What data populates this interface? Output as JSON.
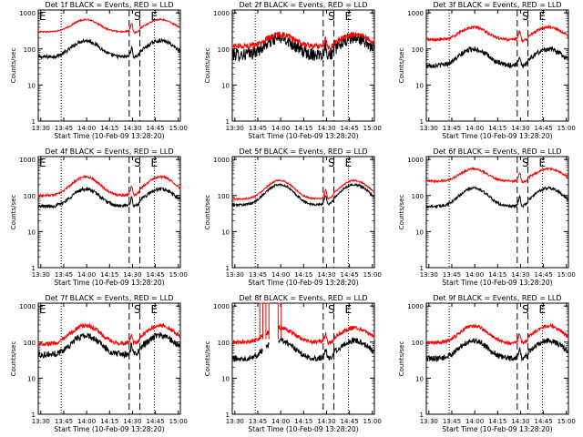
{
  "colors": {
    "events": "#000000",
    "lld": "#ff0000",
    "axes": "#000000",
    "background": "#ffffff"
  },
  "chart_data": [
    {
      "type": "line",
      "title": "Det 1f BLACK = Events, RED = LLD",
      "xlabel": "Start Time (10-Feb-09 13:28:20)",
      "ylabel": "Counts/sec",
      "y_scale": "log",
      "y_ticks": [
        "1",
        "10",
        "100",
        "1000"
      ],
      "x_ticks": [
        "13:30",
        "13:45",
        "14:00",
        "14:15",
        "14:30",
        "14:45",
        "15:00"
      ],
      "xlim_minutes": [
        0,
        93
      ],
      "ylim": [
        1,
        1200
      ],
      "markers": [
        {
          "label": "E",
          "x_minutes": 0
        },
        {
          "label": "S",
          "x_minutes": 62
        },
        {
          "label": "E",
          "x_minutes": 73
        }
      ],
      "dotted_lines_minutes": [
        15,
        76
      ],
      "dashed_lines_minutes": [
        59.5,
        66.5
      ],
      "series": [
        {
          "name": "Events",
          "color": "#000000",
          "base": 60,
          "peak": 170,
          "noise": 0.05
        },
        {
          "name": "LLD",
          "color": "#ff0000",
          "base": 300,
          "peak": 650,
          "noise": 0.02
        }
      ]
    },
    {
      "type": "line",
      "title": "Det 2f BLACK = Events, RED = LLD",
      "xlabel": "Start Time (10-Feb-09 13:28:20)",
      "ylabel": "Counts/sec",
      "y_scale": "log",
      "y_ticks": [
        "1",
        "10",
        "100",
        "1000"
      ],
      "x_ticks": [
        "13:30",
        "13:45",
        "14:00",
        "14:15",
        "14:30",
        "14:45",
        "15:00"
      ],
      "xlim_minutes": [
        0,
        93
      ],
      "ylim": [
        1,
        1200
      ],
      "markers": [
        {
          "label": "S",
          "x_minutes": 62
        },
        {
          "label": "E",
          "x_minutes": 73
        }
      ],
      "dotted_lines_minutes": [
        15,
        76
      ],
      "dashed_lines_minutes": [
        59.5,
        66.5
      ],
      "series": [
        {
          "name": "Events",
          "color": "#000000",
          "base": 70,
          "peak": 200,
          "noise": 0.18
        },
        {
          "name": "LLD",
          "color": "#ff0000",
          "base": 120,
          "peak": 250,
          "noise": 0.08
        }
      ]
    },
    {
      "type": "line",
      "title": "Det 3f BLACK = Events, RED = LLD",
      "xlabel": "Start Time (10-Feb-09 13:28:20)",
      "ylabel": "Counts/sec",
      "y_scale": "log",
      "y_ticks": [
        "1",
        "10",
        "100",
        "1000"
      ],
      "x_ticks": [
        "13:30",
        "13:45",
        "14:00",
        "14:15",
        "14:30",
        "14:45",
        "15:00"
      ],
      "xlim_minutes": [
        0,
        93
      ],
      "ylim": [
        1,
        1200
      ],
      "markers": [
        {
          "label": "S",
          "x_minutes": 62
        },
        {
          "label": "E",
          "x_minutes": 73
        }
      ],
      "dotted_lines_minutes": [
        15,
        76
      ],
      "dashed_lines_minutes": [
        59.5,
        66.5
      ],
      "series": [
        {
          "name": "Events",
          "color": "#000000",
          "base": 35,
          "peak": 100,
          "noise": 0.07
        },
        {
          "name": "LLD",
          "color": "#ff0000",
          "base": 180,
          "peak": 400,
          "noise": 0.04
        }
      ]
    },
    {
      "type": "line",
      "title": "Det 4f BLACK = Events, RED = LLD",
      "xlabel": "Start Time (10-Feb-09 13:28:20)",
      "ylabel": "Counts/sec",
      "y_scale": "log",
      "y_ticks": [
        "1",
        "10",
        "100",
        "1000"
      ],
      "x_ticks": [
        "13:30",
        "13:45",
        "14:00",
        "14:15",
        "14:30",
        "14:45",
        "15:00"
      ],
      "xlim_minutes": [
        0,
        93
      ],
      "ylim": [
        1,
        1200
      ],
      "markers": [
        {
          "label": "E",
          "x_minutes": 0
        },
        {
          "label": "S",
          "x_minutes": 62
        },
        {
          "label": "E",
          "x_minutes": 73
        }
      ],
      "dotted_lines_minutes": [
        15,
        76
      ],
      "dashed_lines_minutes": [
        59.5,
        66.5
      ],
      "series": [
        {
          "name": "Events",
          "color": "#000000",
          "base": 50,
          "peak": 150,
          "noise": 0.05
        },
        {
          "name": "LLD",
          "color": "#ff0000",
          "base": 100,
          "peak": 330,
          "noise": 0.03
        }
      ]
    },
    {
      "type": "line",
      "title": "Det 5f BLACK = Events, RED = LLD",
      "xlabel": "Start Time (10-Feb-09 13:28:20)",
      "ylabel": "Counts/sec",
      "y_scale": "log",
      "y_ticks": [
        "1",
        "10",
        "100",
        "1000"
      ],
      "x_ticks": [
        "13:30",
        "13:45",
        "14:00",
        "14:15",
        "14:30",
        "14:45",
        "15:00"
      ],
      "xlim_minutes": [
        0,
        93
      ],
      "ylim": [
        1,
        1200
      ],
      "markers": [
        {
          "label": "S",
          "x_minutes": 62
        },
        {
          "label": "E",
          "x_minutes": 73
        }
      ],
      "dotted_lines_minutes": [
        15,
        76
      ],
      "dashed_lines_minutes": [
        59.5,
        66.5
      ],
      "series": [
        {
          "name": "Events",
          "color": "#000000",
          "base": 55,
          "peak": 200,
          "noise": 0.03
        },
        {
          "name": "LLD",
          "color": "#ff0000",
          "base": 80,
          "peak": 260,
          "noise": 0.02
        }
      ]
    },
    {
      "type": "line",
      "title": "Det 6f BLACK = Events, RED = LLD",
      "xlabel": "Start Time (10-Feb-09 13:28:20)",
      "ylabel": "Counts/sec",
      "y_scale": "log",
      "y_ticks": [
        "1",
        "10",
        "100",
        "1000"
      ],
      "x_ticks": [
        "13:30",
        "13:45",
        "14:00",
        "14:15",
        "14:30",
        "14:45",
        "15:00"
      ],
      "xlim_minutes": [
        0,
        93
      ],
      "ylim": [
        1,
        1200
      ],
      "markers": [
        {
          "label": "S",
          "x_minutes": 62
        },
        {
          "label": "E",
          "x_minutes": 73
        }
      ],
      "dotted_lines_minutes": [
        15,
        76
      ],
      "dashed_lines_minutes": [
        59.5,
        66.5
      ],
      "series": [
        {
          "name": "Events",
          "color": "#000000",
          "base": 50,
          "peak": 160,
          "noise": 0.04
        },
        {
          "name": "LLD",
          "color": "#ff0000",
          "base": 250,
          "peak": 550,
          "noise": 0.03
        }
      ]
    },
    {
      "type": "line",
      "title": "Det 7f BLACK = Events, RED = LLD",
      "xlabel": "Start Time (10-Feb-09 13:28:20)",
      "ylabel": "Counts/sec",
      "y_scale": "log",
      "y_ticks": [
        "1",
        "10",
        "100",
        "1000"
      ],
      "x_ticks": [
        "13:30",
        "13:45",
        "14:00",
        "14:15",
        "14:30",
        "14:45",
        "15:00"
      ],
      "xlim_minutes": [
        0,
        93
      ],
      "ylim": [
        1,
        1200
      ],
      "markers": [
        {
          "label": "E",
          "x_minutes": 0
        },
        {
          "label": "S",
          "x_minutes": 62
        },
        {
          "label": "E",
          "x_minutes": 73
        }
      ],
      "dotted_lines_minutes": [
        15,
        76
      ],
      "dashed_lines_minutes": [
        59.5,
        66.5
      ],
      "series": [
        {
          "name": "Events",
          "color": "#000000",
          "base": 45,
          "peak": 150,
          "noise": 0.09
        },
        {
          "name": "LLD",
          "color": "#ff0000",
          "base": 90,
          "peak": 290,
          "noise": 0.06
        }
      ]
    },
    {
      "type": "line",
      "title": "Det 8f BLACK = Events, RED = LLD",
      "xlabel": "Start Time (10-Feb-09 13:28:20)",
      "ylabel": "Counts/sec",
      "y_scale": "log",
      "y_ticks": [
        "1",
        "10",
        "100",
        "1000"
      ],
      "x_ticks": [
        "13:30",
        "13:45",
        "14:00",
        "14:15",
        "14:30",
        "14:45",
        "15:00"
      ],
      "xlim_minutes": [
        0,
        93
      ],
      "ylim": [
        1,
        1200
      ],
      "markers": [
        {
          "label": "S",
          "x_minutes": 62
        },
        {
          "label": "E",
          "x_minutes": 73
        }
      ],
      "dotted_lines_minutes": [
        15,
        76
      ],
      "dashed_lines_minutes": [
        59.5,
        66.5
      ],
      "spikes": [
        {
          "x_minutes": [
            18,
            20
          ],
          "peak": 1500
        },
        {
          "x_minutes": [
            22,
            24
          ],
          "peak": 1500
        },
        {
          "x_minutes": [
            30,
            32
          ],
          "peak": 1500
        }
      ],
      "gaps_minutes": [
        [
          20,
          22
        ],
        [
          24,
          30
        ]
      ],
      "series": [
        {
          "name": "Events",
          "color": "#000000",
          "base": 35,
          "peak": 110,
          "noise": 0.08
        },
        {
          "name": "LLD",
          "color": "#ff0000",
          "base": 100,
          "peak": 250,
          "noise": 0.06
        }
      ]
    },
    {
      "type": "line",
      "title": "Det 9f BLACK = Events, RED = LLD",
      "xlabel": "Start Time (10-Feb-09 13:28:20)",
      "ylabel": "Counts/sec",
      "y_scale": "log",
      "y_ticks": [
        "1",
        "10",
        "100",
        "1000"
      ],
      "x_ticks": [
        "13:30",
        "13:45",
        "14:00",
        "14:15",
        "14:30",
        "14:45",
        "15:00"
      ],
      "xlim_minutes": [
        0,
        93
      ],
      "ylim": [
        1,
        1200
      ],
      "markers": [
        {
          "label": "S",
          "x_minutes": 62
        },
        {
          "label": "E",
          "x_minutes": 73
        }
      ],
      "dotted_lines_minutes": [
        15,
        76
      ],
      "dashed_lines_minutes": [
        59.5,
        66.5
      ],
      "series": [
        {
          "name": "Events",
          "color": "#000000",
          "base": 35,
          "peak": 110,
          "noise": 0.08
        },
        {
          "name": "LLD",
          "color": "#ff0000",
          "base": 95,
          "peak": 280,
          "noise": 0.05
        }
      ]
    }
  ]
}
